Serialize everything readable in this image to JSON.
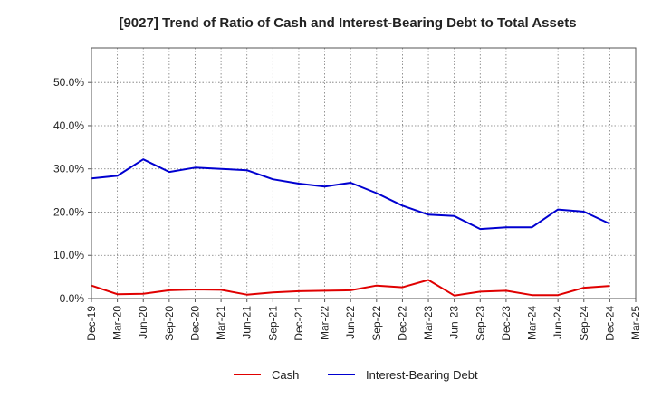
{
  "chart_data": {
    "type": "line",
    "title": "[9027]  Trend of Ratio of Cash and Interest-Bearing Debt to Total Assets",
    "xlabel": "",
    "ylabel": "",
    "categories": [
      "Dec-19",
      "Mar-20",
      "Jun-20",
      "Sep-20",
      "Dec-20",
      "Mar-21",
      "Jun-21",
      "Sep-21",
      "Dec-21",
      "Mar-22",
      "Jun-22",
      "Sep-22",
      "Dec-22",
      "Mar-23",
      "Jun-23",
      "Sep-23",
      "Dec-23",
      "Mar-24",
      "Jun-24",
      "Sep-24",
      "Dec-24",
      "Mar-25"
    ],
    "ylim": [
      0,
      58
    ],
    "yticks": [
      0,
      10,
      20,
      30,
      40,
      50
    ],
    "ytick_labels": [
      "0.0%",
      "10.0%",
      "20.0%",
      "30.0%",
      "40.0%",
      "50.0%"
    ],
    "grid": true,
    "legend_position": "bottom-center",
    "series": [
      {
        "name": "Cash",
        "color": "#e00000",
        "values": [
          3.0,
          1.0,
          1.1,
          1.9,
          2.1,
          2.0,
          0.9,
          1.4,
          1.7,
          1.8,
          1.9,
          3.0,
          2.6,
          4.3,
          0.7,
          1.6,
          1.8,
          0.8,
          0.8,
          2.5,
          2.9,
          null
        ]
      },
      {
        "name": "Interest-Bearing Debt",
        "color": "#0000d0",
        "values": [
          27.8,
          28.4,
          32.2,
          29.3,
          30.3,
          30.0,
          29.7,
          27.6,
          26.6,
          25.9,
          26.8,
          24.4,
          21.5,
          19.4,
          19.1,
          16.1,
          16.5,
          16.5,
          20.6,
          20.1,
          17.3,
          null
        ]
      }
    ]
  }
}
